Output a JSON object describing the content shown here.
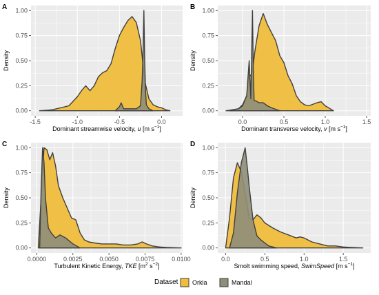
{
  "legend": {
    "title": "Dataset",
    "items": [
      {
        "label": "Orkla",
        "color": "#F0BD3D"
      },
      {
        "label": "Mandal",
        "color": "#8E8E79"
      }
    ]
  },
  "colors": {
    "panel_bg": "#EBEBEB",
    "grid": "#FFFFFF",
    "outline": "#3F3F3F"
  },
  "chart_data": [
    {
      "type": "area",
      "panel": "A",
      "xlabel": "Dominant streamwise velocity, u [m s⁻¹]",
      "xlabel_parts": {
        "pre": "Dominant streamwise velocity, ",
        "var": "u",
        "unit": " [m s",
        "sup": "−1",
        "post": "]"
      },
      "ylabel": "Density",
      "xlim": [
        -1.55,
        0.25
      ],
      "ylim": [
        -0.05,
        1.05
      ],
      "xticks": [
        -1.5,
        -1.0,
        -0.5,
        0.0
      ],
      "xticklabels": [
        "-1.5",
        "-1.0",
        "-0.5",
        "0.0"
      ],
      "yticks": [
        0,
        0.25,
        0.5,
        0.75,
        1.0
      ],
      "yticklabels": [
        "0.00",
        "0.25",
        "0.50",
        "0.75",
        "1.00"
      ],
      "grid": true,
      "series": [
        {
          "name": "Orkla",
          "x": [
            -1.45,
            -1.3,
            -1.1,
            -1.0,
            -0.95,
            -0.9,
            -0.85,
            -0.8,
            -0.75,
            -0.7,
            -0.65,
            -0.6,
            -0.55,
            -0.5,
            -0.45,
            -0.4,
            -0.35,
            -0.3,
            -0.25,
            -0.2,
            -0.15,
            -0.1,
            -0.05,
            0.0,
            0.05,
            0.1
          ],
          "y": [
            0,
            0.01,
            0.05,
            0.14,
            0.2,
            0.25,
            0.2,
            0.25,
            0.34,
            0.38,
            0.4,
            0.47,
            0.62,
            0.75,
            0.83,
            0.9,
            0.94,
            0.88,
            0.7,
            0.3,
            0.12,
            0.06,
            0.04,
            0.03,
            0.01,
            0
          ]
        },
        {
          "name": "Mandal",
          "x": [
            -0.55,
            -0.5,
            -0.48,
            -0.45,
            -0.3,
            -0.25,
            -0.23,
            -0.22,
            -0.21,
            -0.2,
            -0.19,
            -0.18,
            -0.15,
            -0.1
          ],
          "y": [
            0,
            0.04,
            0.08,
            0.02,
            0.02,
            0.05,
            0.3,
            0.6,
            1.0,
            0.5,
            0.2,
            0.06,
            0.02,
            0
          ]
        }
      ]
    },
    {
      "type": "area",
      "panel": "B",
      "xlabel": "Dominant transverse velocity, v [m s⁻¹]",
      "xlabel_parts": {
        "pre": "Dominant transverse velocity, ",
        "var": "v",
        "unit": " [m s",
        "sup": "−1",
        "post": "]"
      },
      "ylabel": "Density",
      "xlim": [
        -0.3,
        1.55
      ],
      "ylim": [
        -0.05,
        1.05
      ],
      "xticks": [
        0.0,
        0.5,
        1.0,
        1.5
      ],
      "xticklabels": [
        "0.0",
        "0.5",
        "1.0",
        "1.5"
      ],
      "yticks": [
        0,
        0.25,
        0.5,
        0.75,
        1.0
      ],
      "yticklabels": [
        "0.00",
        "0.25",
        "0.50",
        "0.75",
        "1.00"
      ],
      "grid": true,
      "series": [
        {
          "name": "Orkla",
          "x": [
            -0.15,
            -0.05,
            0.0,
            0.05,
            0.08,
            0.1,
            0.12,
            0.15,
            0.2,
            0.25,
            0.3,
            0.35,
            0.4,
            0.45,
            0.5,
            0.55,
            0.6,
            0.65,
            0.7,
            0.75,
            0.8,
            0.9,
            0.95,
            1.0,
            1.1
          ],
          "y": [
            0,
            0.02,
            0.06,
            0.15,
            0.36,
            0.35,
            0.4,
            0.6,
            0.85,
            0.97,
            0.86,
            0.78,
            0.7,
            0.55,
            0.48,
            0.35,
            0.27,
            0.15,
            0.09,
            0.06,
            0.05,
            0.08,
            0.09,
            0.05,
            0
          ]
        },
        {
          "name": "Mandal",
          "x": [
            -0.2,
            -0.05,
            0.0,
            0.05,
            0.08,
            0.1,
            0.12,
            0.13,
            0.14,
            0.16,
            0.2,
            0.25,
            0.3,
            0.35,
            0.45
          ],
          "y": [
            0,
            0.02,
            0.05,
            0.15,
            0.5,
            0.12,
            1.0,
            0.4,
            0.1,
            0.1,
            0.08,
            0.08,
            0.05,
            0.03,
            0
          ]
        }
      ]
    },
    {
      "type": "area",
      "panel": "C",
      "xlabel": "Turbulent Kinetic Energy, TKE [m² s⁻²]",
      "xlabel_parts": {
        "pre": "Turbulent Kinetic Energy, ",
        "var": "TKE",
        "unit": " [m",
        "sup": "2",
        "mid": " s",
        "sup2": "−2",
        "post": "]"
      },
      "ylabel": "Density",
      "xlim": [
        -0.0004,
        0.0101
      ],
      "ylim": [
        -0.05,
        1.05
      ],
      "xticks": [
        0.0,
        0.0025,
        0.005,
        0.0075,
        0.01
      ],
      "xticklabels": [
        "0.0000",
        "0.0025",
        "0.0050",
        "0.0075",
        "0.0100"
      ],
      "yticks": [
        0,
        0.25,
        0.5,
        0.75,
        1.0
      ],
      "yticklabels": [
        "0.00",
        "0.25",
        "0.50",
        "0.75",
        "1.00"
      ],
      "grid": true,
      "series": [
        {
          "name": "Orkla",
          "x": [
            0.0001,
            0.0003,
            0.0005,
            0.0007,
            0.0009,
            0.0011,
            0.0013,
            0.0015,
            0.0018,
            0.0021,
            0.0024,
            0.0027,
            0.003,
            0.0033,
            0.0036,
            0.004,
            0.0045,
            0.005,
            0.0055,
            0.006,
            0.0065,
            0.007,
            0.0073,
            0.0076,
            0.008,
            0.0085,
            0.009,
            0.01
          ],
          "y": [
            0,
            0.5,
            1.0,
            0.98,
            0.88,
            0.95,
            0.82,
            0.62,
            0.5,
            0.4,
            0.3,
            0.28,
            0.15,
            0.08,
            0.06,
            0.05,
            0.04,
            0.04,
            0.04,
            0.03,
            0.03,
            0.04,
            0.06,
            0.04,
            0.02,
            0.01,
            0.005,
            0
          ]
        },
        {
          "name": "Mandal",
          "x": [
            0.0002,
            0.0003,
            0.0004,
            0.0005,
            0.0006,
            0.0008,
            0.001,
            0.0013,
            0.0016,
            0.002,
            0.0025,
            0.003
          ],
          "y": [
            0,
            0.6,
            1.0,
            0.85,
            0.5,
            0.2,
            0.15,
            0.1,
            0.13,
            0.1,
            0.04,
            0
          ]
        }
      ]
    },
    {
      "type": "area",
      "panel": "D",
      "xlabel": "Smolt swimming speed, SwimSpeed [m s⁻¹]",
      "xlabel_parts": {
        "pre": "Smolt swimming speed, ",
        "var": "SwimSpeed",
        "unit": " [m s",
        "sup": "−1",
        "post": "]"
      },
      "ylabel": "Density",
      "xlim": [
        -0.1,
        1.85
      ],
      "ylim": [
        -0.05,
        1.05
      ],
      "xticks": [
        0.0,
        0.5,
        1.0,
        1.5
      ],
      "xticklabels": [
        "0.0",
        "0.5",
        "1.0",
        "1.5"
      ],
      "yticks": [
        0,
        0.25,
        0.5,
        0.75,
        1.0
      ],
      "yticklabels": [
        "0.00",
        "0.25",
        "0.50",
        "0.75",
        "1.00"
      ],
      "grid": true,
      "series": [
        {
          "name": "Orkla",
          "x": [
            0.0,
            0.05,
            0.1,
            0.15,
            0.2,
            0.25,
            0.3,
            0.35,
            0.4,
            0.45,
            0.5,
            0.6,
            0.7,
            0.8,
            0.9,
            0.95,
            1.0,
            1.1,
            1.2,
            1.3,
            1.4,
            1.5,
            1.6,
            1.75
          ],
          "y": [
            0,
            0.3,
            0.7,
            0.85,
            0.76,
            0.55,
            0.3,
            0.28,
            0.33,
            0.3,
            0.25,
            0.2,
            0.16,
            0.13,
            0.1,
            0.11,
            0.1,
            0.06,
            0.04,
            0.02,
            0.02,
            0.01,
            0.005,
            0
          ]
        },
        {
          "name": "Mandal",
          "x": [
            0.05,
            0.1,
            0.15,
            0.2,
            0.25,
            0.28,
            0.3,
            0.35,
            0.4,
            0.45,
            0.5,
            0.55,
            0.65
          ],
          "y": [
            0,
            0.15,
            0.55,
            0.85,
            1.0,
            0.78,
            0.62,
            0.28,
            0.12,
            0.08,
            0.05,
            0.02,
            0
          ]
        }
      ]
    }
  ]
}
